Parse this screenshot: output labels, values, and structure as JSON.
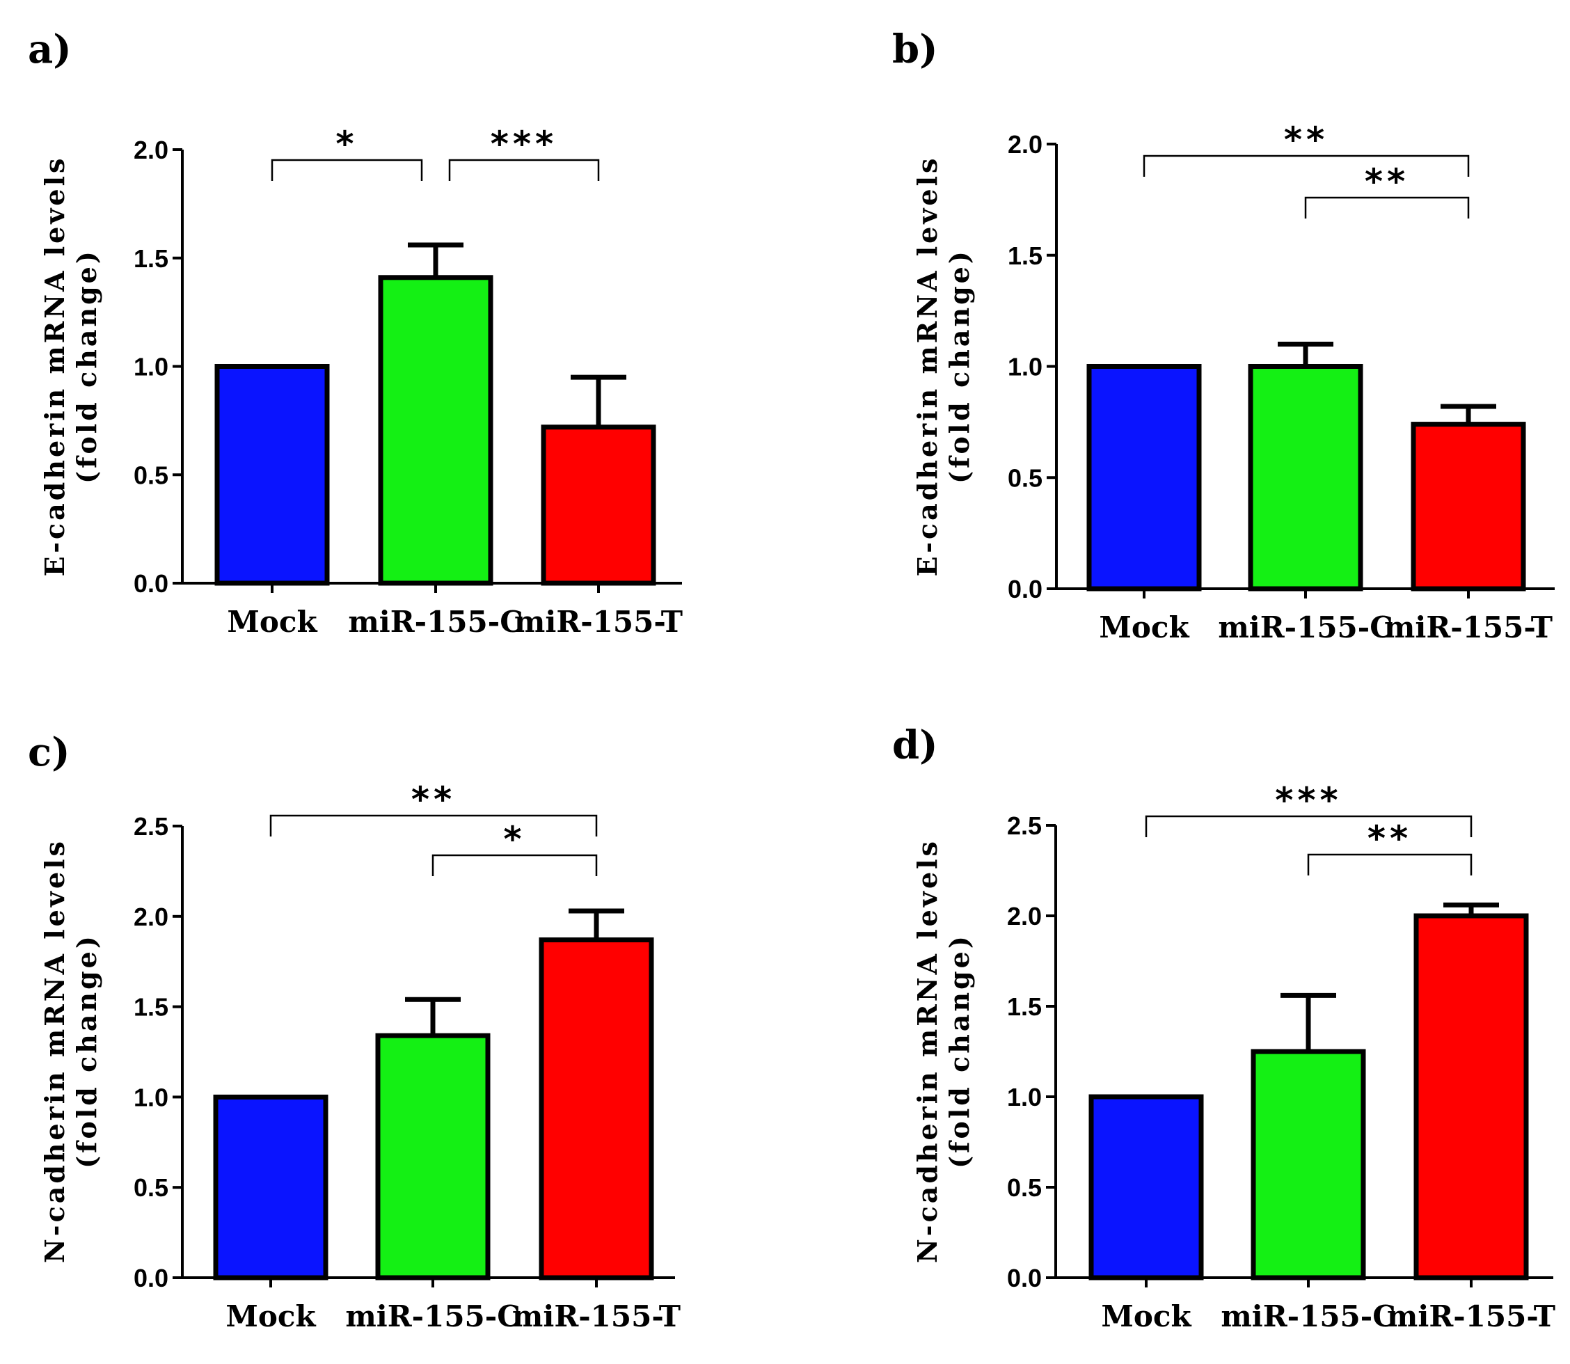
{
  "colors": {
    "Mock": "#0a14ff",
    "miR-155-C": "#14f014",
    "miR-155-T": "#ff0000"
  },
  "chart_data": [
    {
      "type": "bar",
      "panel_label": "a)",
      "categories": [
        "Mock",
        "miR-155-C",
        "miR-155-T"
      ],
      "values": [
        1.0,
        1.41,
        0.72
      ],
      "errors": [
        0,
        0.15,
        0.23
      ],
      "ylabel_lines": [
        "E-cadherin mRNA levels",
        "(fold change)"
      ],
      "ylim": [
        0,
        2.0
      ],
      "yticks": [
        "0.0",
        "0.5",
        "1.0",
        "1.5",
        "2.0"
      ],
      "significance": [
        {
          "from": 0,
          "to": 1,
          "label": "*"
        },
        {
          "from": 1,
          "to": 2,
          "label": "***"
        }
      ]
    },
    {
      "type": "bar",
      "panel_label": "b)",
      "categories": [
        "Mock",
        "miR-155-C",
        "miR-155-T"
      ],
      "values": [
        1.0,
        1.0,
        0.74
      ],
      "errors": [
        0,
        0.1,
        0.08
      ],
      "ylabel_lines": [
        "E-cadherin mRNA levels",
        "(fold change)"
      ],
      "ylim": [
        0,
        2.0
      ],
      "yticks": [
        "0.0",
        "0.5",
        "1.0",
        "1.5",
        "2.0"
      ],
      "significance": [
        {
          "from": 0,
          "to": 2,
          "label": "**"
        },
        {
          "from": 1,
          "to": 2,
          "label": "**"
        }
      ]
    },
    {
      "type": "bar",
      "panel_label": "c)",
      "categories": [
        "Mock",
        "miR-155-C",
        "miR-155-T"
      ],
      "values": [
        1.0,
        1.34,
        1.87
      ],
      "errors": [
        0,
        0.2,
        0.16
      ],
      "ylabel_lines": [
        "N-cadherin mRNA levels",
        "(fold change)"
      ],
      "ylim": [
        0,
        2.5
      ],
      "yticks": [
        "0.0",
        "0.5",
        "1.0",
        "1.5",
        "2.0",
        "2.5"
      ],
      "significance": [
        {
          "from": 0,
          "to": 2,
          "label": "**"
        },
        {
          "from": 1,
          "to": 2,
          "label": "*"
        }
      ]
    },
    {
      "type": "bar",
      "panel_label": "d)",
      "categories": [
        "Mock",
        "miR-155-C",
        "miR-155-T"
      ],
      "values": [
        1.0,
        1.25,
        2.0
      ],
      "errors": [
        0,
        0.31,
        0.06
      ],
      "ylabel_lines": [
        "N-cadherin mRNA levels",
        "(fold change)"
      ],
      "ylim": [
        0,
        2.5
      ],
      "yticks": [
        "0.0",
        "0.5",
        "1.0",
        "1.5",
        "2.0",
        "2.5"
      ],
      "significance": [
        {
          "from": 0,
          "to": 2,
          "label": "***"
        },
        {
          "from": 1,
          "to": 2,
          "label": "**"
        }
      ]
    }
  ]
}
